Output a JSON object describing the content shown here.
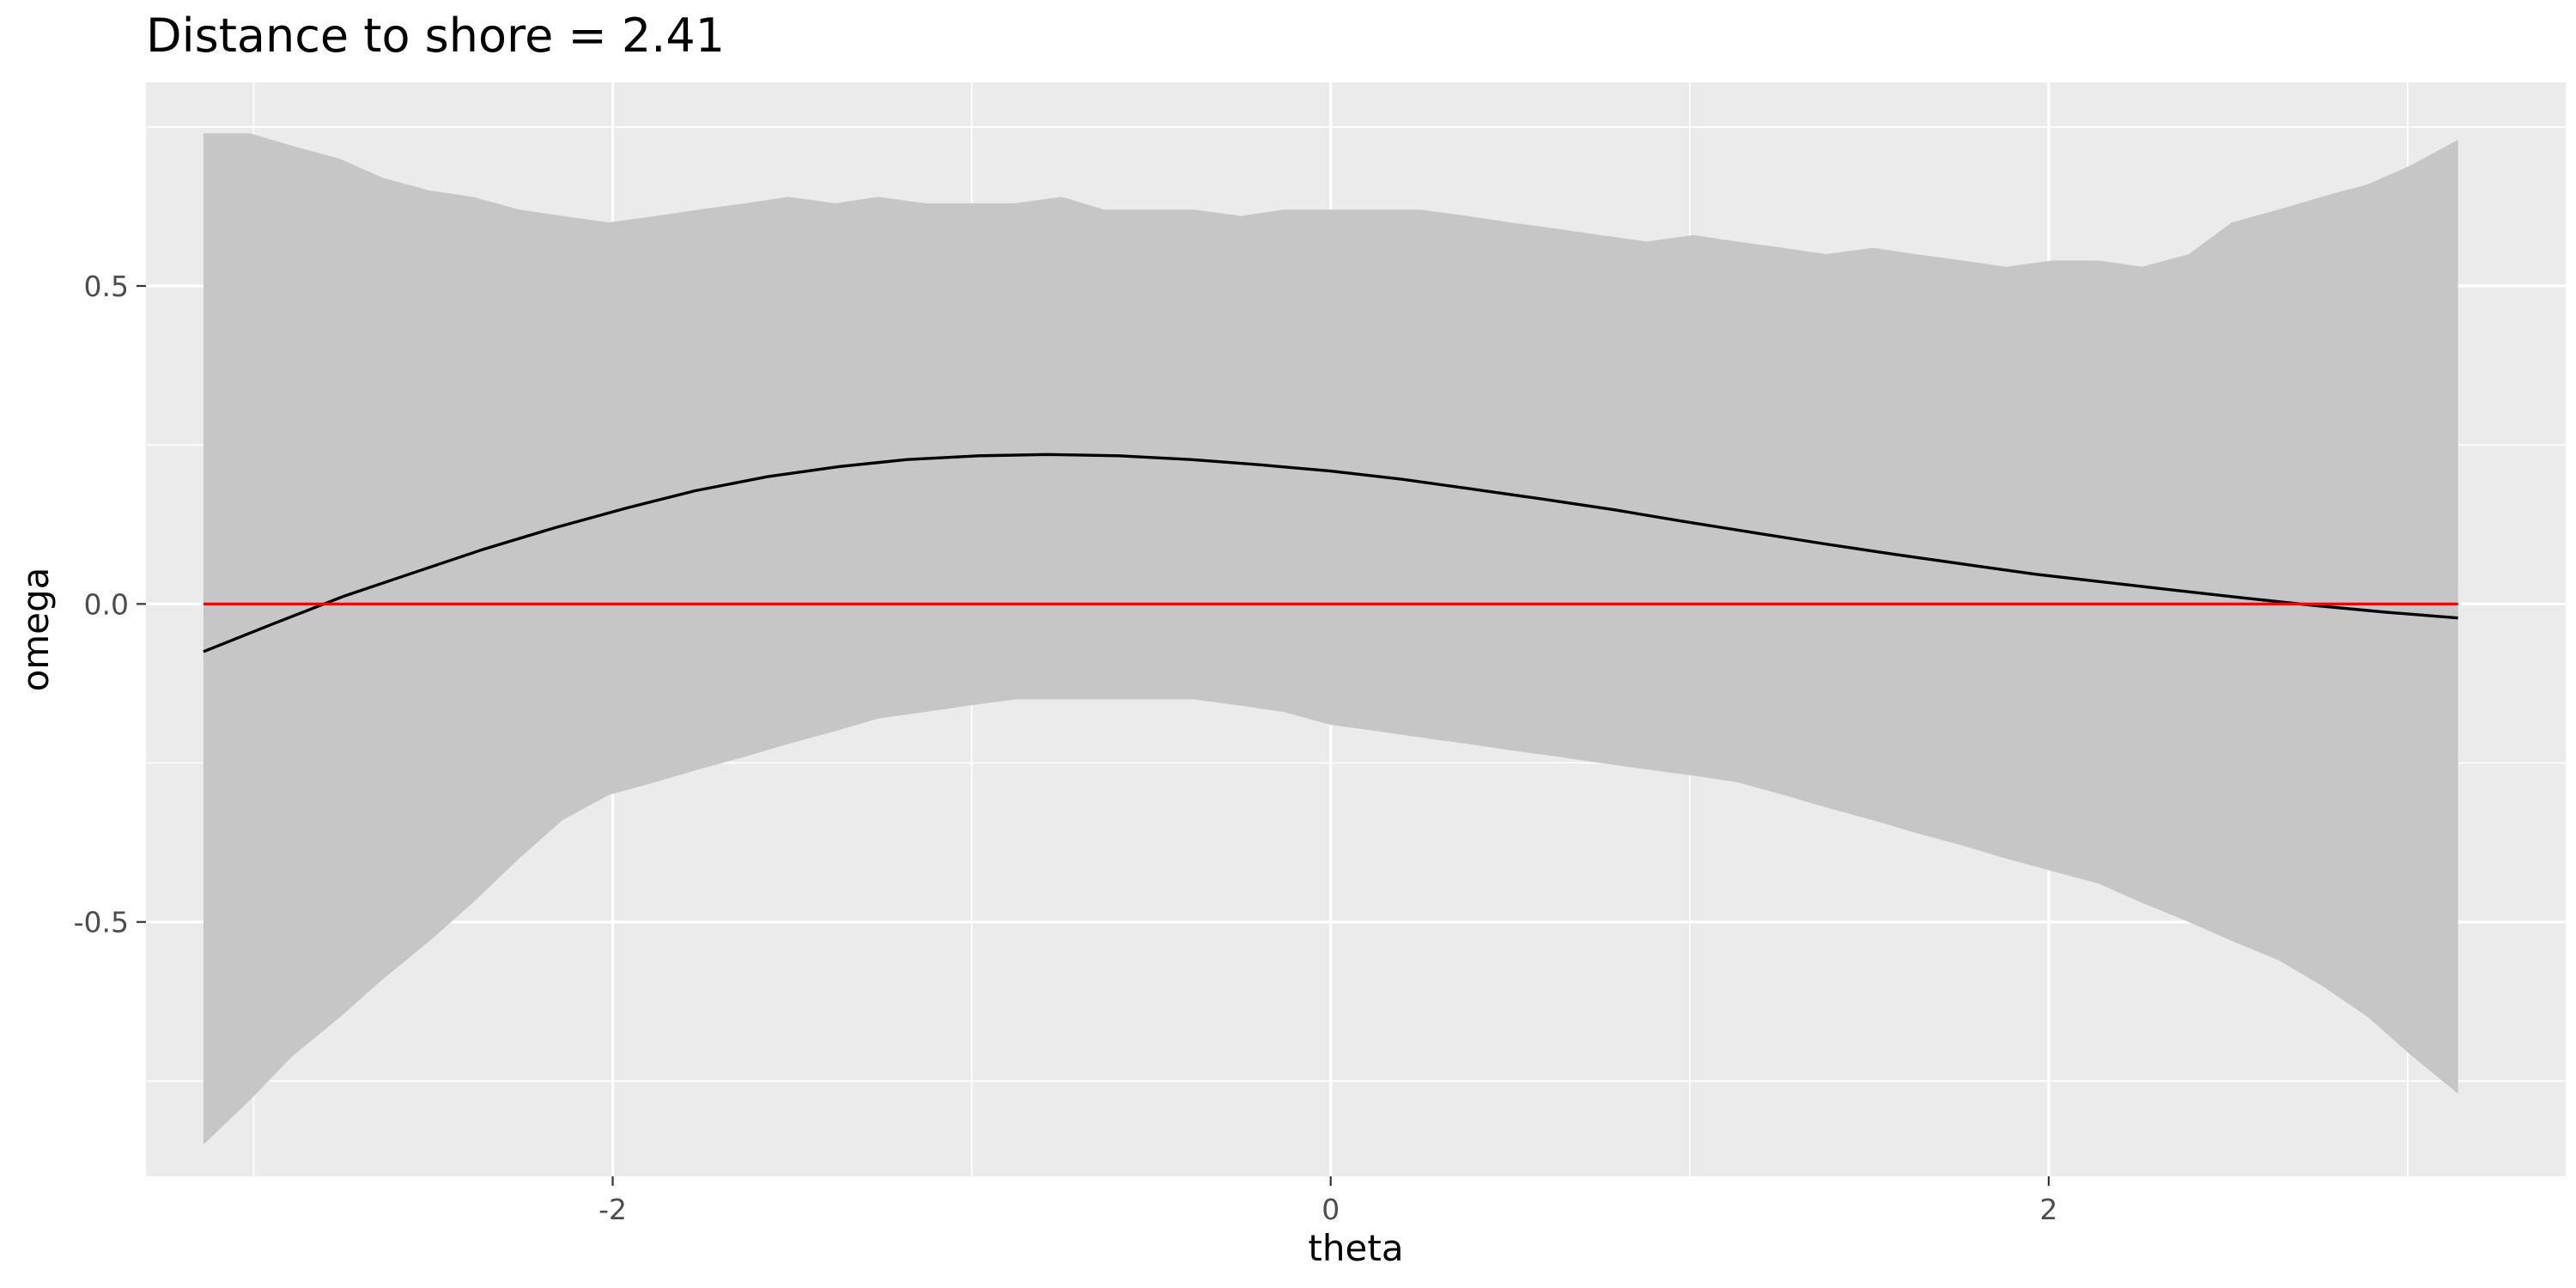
{
  "chart_data": {
    "type": "line",
    "title": "Distance to shore = 2.41",
    "xlabel": "theta",
    "ylabel": "omega",
    "xlim": [
      -3.3,
      3.44
    ],
    "ylim": [
      -0.9,
      0.82
    ],
    "grid": true,
    "background": "#EBEBEB",
    "x_ticks": [
      {
        "value": -2,
        "label": "-2"
      },
      {
        "value": 0,
        "label": "0"
      },
      {
        "value": 2,
        "label": "2"
      }
    ],
    "y_ticks": [
      {
        "value": -0.5,
        "label": "-0.5"
      },
      {
        "value": 0.0,
        "label": "0.0"
      },
      {
        "value": 0.5,
        "label": "0.5"
      }
    ],
    "x_minor": [
      -3,
      -1,
      1,
      3
    ],
    "y_minor": [
      -0.75,
      -0.25,
      0.25,
      0.75
    ],
    "ribbon": {
      "color": "#C6C6C6",
      "x": [
        -3.14,
        -3.01,
        -2.89,
        -2.76,
        -2.64,
        -2.51,
        -2.39,
        -2.26,
        -2.14,
        -2.01,
        -1.88,
        -1.76,
        -1.63,
        -1.51,
        -1.38,
        -1.26,
        -1.13,
        -1.01,
        -0.88,
        -0.75,
        -0.63,
        -0.5,
        -0.38,
        -0.25,
        -0.13,
        0.0,
        0.13,
        0.25,
        0.38,
        0.5,
        0.63,
        0.75,
        0.88,
        1.01,
        1.13,
        1.26,
        1.38,
        1.51,
        1.63,
        1.76,
        1.88,
        2.01,
        2.14,
        2.26,
        2.39,
        2.51,
        2.64,
        2.76,
        2.89,
        3.01,
        3.14
      ],
      "ymin": [
        -0.85,
        -0.78,
        -0.71,
        -0.65,
        -0.59,
        -0.53,
        -0.47,
        -0.4,
        -0.34,
        -0.3,
        -0.28,
        -0.26,
        -0.24,
        -0.22,
        -0.2,
        -0.18,
        -0.17,
        -0.16,
        -0.15,
        -0.15,
        -0.15,
        -0.15,
        -0.15,
        -0.16,
        -0.17,
        -0.19,
        -0.2,
        -0.21,
        -0.22,
        -0.23,
        -0.24,
        -0.25,
        -0.26,
        -0.27,
        -0.28,
        -0.3,
        -0.32,
        -0.34,
        -0.36,
        -0.38,
        -0.4,
        -0.42,
        -0.44,
        -0.47,
        -0.5,
        -0.53,
        -0.56,
        -0.6,
        -0.65,
        -0.71,
        -0.77
      ],
      "ymax": [
        0.74,
        0.74,
        0.72,
        0.7,
        0.67,
        0.65,
        0.64,
        0.62,
        0.61,
        0.6,
        0.61,
        0.62,
        0.63,
        0.64,
        0.63,
        0.64,
        0.63,
        0.63,
        0.63,
        0.64,
        0.62,
        0.62,
        0.62,
        0.61,
        0.62,
        0.62,
        0.62,
        0.62,
        0.61,
        0.6,
        0.59,
        0.58,
        0.57,
        0.58,
        0.57,
        0.56,
        0.55,
        0.56,
        0.55,
        0.54,
        0.53,
        0.54,
        0.54,
        0.53,
        0.55,
        0.6,
        0.62,
        0.64,
        0.66,
        0.69,
        0.73
      ]
    },
    "series": [
      {
        "color": "#000000",
        "x": [
          -3.14,
          -2.94,
          -2.75,
          -2.55,
          -2.36,
          -2.16,
          -1.96,
          -1.77,
          -1.57,
          -1.37,
          -1.18,
          -0.98,
          -0.79,
          -0.59,
          -0.39,
          -0.2,
          0.0,
          0.2,
          0.39,
          0.59,
          0.79,
          0.98,
          1.18,
          1.37,
          1.57,
          1.77,
          1.96,
          2.16,
          2.36,
          2.55,
          2.75,
          2.94,
          3.14
        ],
        "values": [
          -0.075,
          -0.03,
          0.012,
          0.05,
          0.086,
          0.12,
          0.151,
          0.178,
          0.2,
          0.216,
          0.227,
          0.233,
          0.235,
          0.233,
          0.227,
          0.219,
          0.209,
          0.196,
          0.181,
          0.165,
          0.148,
          0.13,
          0.112,
          0.095,
          0.078,
          0.062,
          0.047,
          0.034,
          0.021,
          0.009,
          -0.003,
          -0.013,
          -0.022
        ]
      },
      {
        "color": "#FF0000",
        "x": [
          -3.14,
          3.14
        ],
        "values": [
          0.0,
          0.0
        ]
      }
    ]
  }
}
